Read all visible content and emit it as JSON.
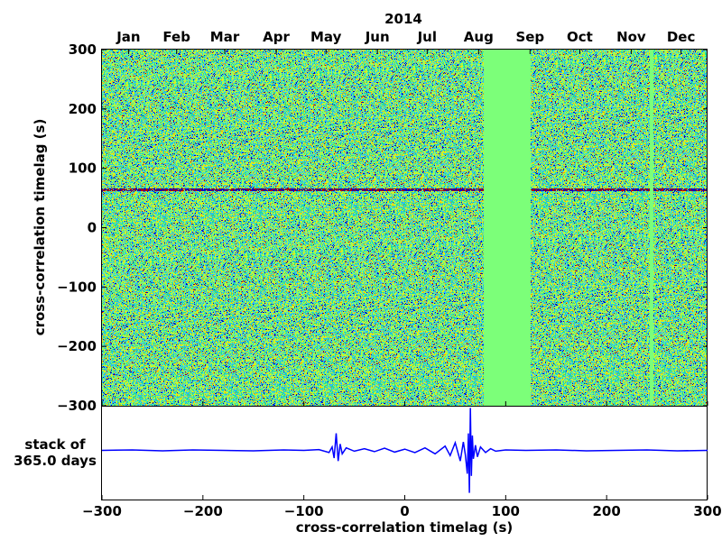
{
  "chart_data": [
    {
      "type": "heatmap",
      "title": "2014",
      "ylabel": "cross-correlation timelag (s)",
      "ylim": [
        -300,
        300
      ],
      "yticks": [
        -300,
        -200,
        -100,
        0,
        100,
        200,
        300
      ],
      "ytick_labels": [
        "−300",
        "−200",
        "−100",
        "0",
        "100",
        "200",
        "300"
      ],
      "x_top_labels": [
        "Jan",
        "Feb",
        "Mar",
        "Apr",
        "May",
        "Jun",
        "Jul",
        "Aug",
        "Sep",
        "Oct",
        "Nov",
        "Dec"
      ],
      "x_top_days": [
        16,
        45,
        74,
        105,
        135,
        166,
        196,
        227,
        258,
        288,
        319,
        349
      ],
      "days": 365,
      "data_gaps_days": [
        [
          230,
          258
        ],
        [
          330,
          332
        ]
      ],
      "signal_lag_s": 65,
      "colormap": [
        "#0000c8",
        "#2fb9ff",
        "#21d8a0",
        "#7cff79",
        "#dcf21a",
        "#ff9a00",
        "#b00000"
      ],
      "background_color": "#7cff79"
    },
    {
      "type": "line",
      "xlabel": "cross-correlation timelag (s)",
      "ylabel": "stack of\n365.0 days",
      "xlim": [
        -300,
        300
      ],
      "xticks": [
        -300,
        -200,
        -100,
        0,
        100,
        200,
        300
      ],
      "xtick_labels": [
        "−300",
        "−200",
        "−100",
        "0",
        "100",
        "200",
        "300"
      ],
      "series": [
        {
          "color": "#0000ff",
          "x": [
            -300,
            -270,
            -240,
            -210,
            -180,
            -150,
            -120,
            -100,
            -85,
            -75,
            -72,
            -70,
            -68,
            -66,
            -64,
            -62,
            -58,
            -50,
            -40,
            -30,
            -20,
            -10,
            0,
            10,
            20,
            30,
            40,
            45,
            50,
            55,
            58,
            60,
            62,
            63,
            64,
            65,
            66,
            67,
            68,
            70,
            72,
            75,
            80,
            85,
            90,
            100,
            120,
            150,
            180,
            210,
            240,
            270,
            300
          ],
          "y": [
            0,
            0.01,
            -0.01,
            0.01,
            0,
            -0.01,
            0.01,
            0,
            0.02,
            -0.05,
            0.08,
            -0.18,
            0.4,
            -0.25,
            0.15,
            -0.08,
            0.06,
            -0.02,
            0.04,
            -0.03,
            0.05,
            -0.04,
            0.03,
            -0.05,
            0.06,
            -0.08,
            0.1,
            -0.12,
            0.18,
            -0.25,
            0.2,
            -0.1,
            -0.55,
            0.4,
            -1.0,
            1.0,
            -0.6,
            0.35,
            -0.2,
            0.12,
            -0.15,
            0.08,
            -0.05,
            0.04,
            -0.02,
            0.01,
            0,
            0.01,
            -0.01,
            0,
            0.01,
            -0.01,
            0
          ]
        }
      ],
      "ylim": [
        -1.05,
        1.05
      ]
    }
  ]
}
